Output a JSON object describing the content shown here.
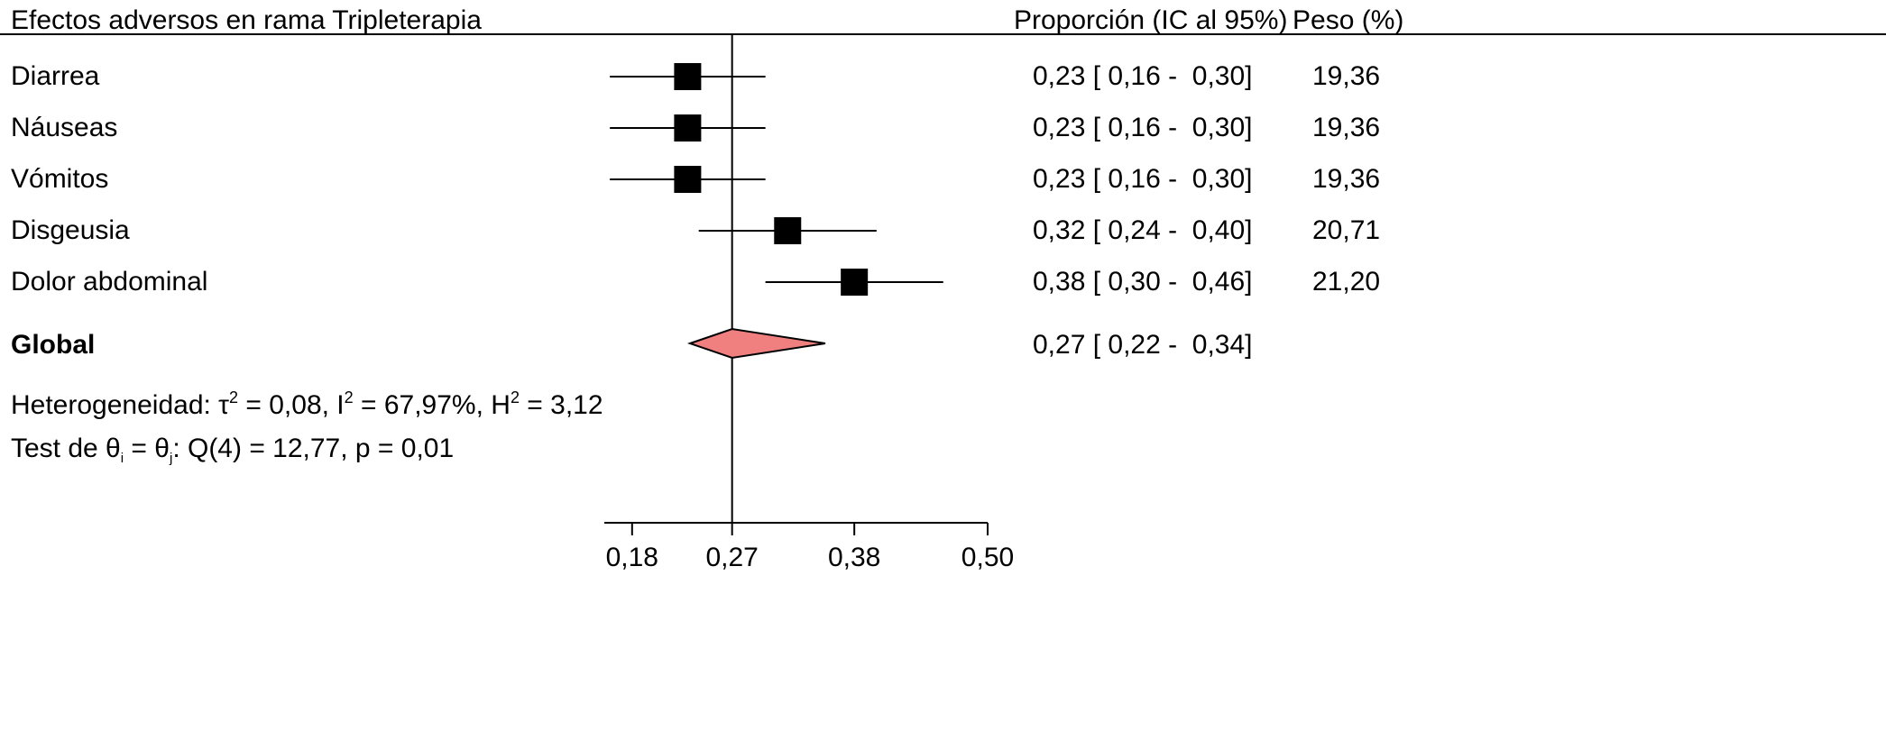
{
  "chart_data": {
    "type": "forest",
    "title": "Efectos adversos en rama Tripleterapia",
    "columns": {
      "estimate": "Proporción (IC al 95%)",
      "weight": "Peso (%)"
    },
    "studies": [
      {
        "label": "Diarrea",
        "estimate": 0.23,
        "lower": 0.16,
        "upper": 0.3,
        "estimate_text": "0,23 [ 0,16 -  0,30]",
        "weight": 19.36,
        "weight_text": "19,36"
      },
      {
        "label": "Náuseas",
        "estimate": 0.23,
        "lower": 0.16,
        "upper": 0.3,
        "estimate_text": "0,23 [ 0,16 -  0,30]",
        "weight": 19.36,
        "weight_text": "19,36"
      },
      {
        "label": "Vómitos",
        "estimate": 0.23,
        "lower": 0.16,
        "upper": 0.3,
        "estimate_text": "0,23 [ 0,16 -  0,30]",
        "weight": 19.36,
        "weight_text": "19,36"
      },
      {
        "label": "Disgeusia",
        "estimate": 0.32,
        "lower": 0.24,
        "upper": 0.4,
        "estimate_text": "0,32 [ 0,24 -  0,40]",
        "weight": 20.71,
        "weight_text": "20,71"
      },
      {
        "label": "Dolor abdominal",
        "estimate": 0.38,
        "lower": 0.3,
        "upper": 0.46,
        "estimate_text": "0,38 [ 0,30 -  0,46]",
        "weight": 21.2,
        "weight_text": "21,20"
      }
    ],
    "overall": {
      "label": "Global",
      "estimate": 0.27,
      "lower": 0.22,
      "upper": 0.34,
      "estimate_text": "0,27 [ 0,22 -  0,34]"
    },
    "heterogeneity": {
      "prefix": "Heterogeneidad: τ",
      "tau2": "= 0,08, I",
      "i2": "= 67,97%, H",
      "h2": "= 3,12",
      "sq": "2"
    },
    "test": {
      "prefix": "Test de θ",
      "sub_i": "i",
      "eq": " = θ",
      "sub_j": "j",
      "rest": ": Q(4) = 12,77, p = 0,01"
    },
    "reference_line": 0.27,
    "x_ticks": [
      0.18,
      0.27,
      0.38,
      0.5
    ],
    "x_tick_labels": [
      "0,18",
      "0,27",
      "0,38",
      "0,50"
    ],
    "xlim": [
      0.155,
      0.5
    ],
    "colors": {
      "marker": "#000000",
      "overall_fill": "#f08080",
      "line": "#000000"
    }
  }
}
